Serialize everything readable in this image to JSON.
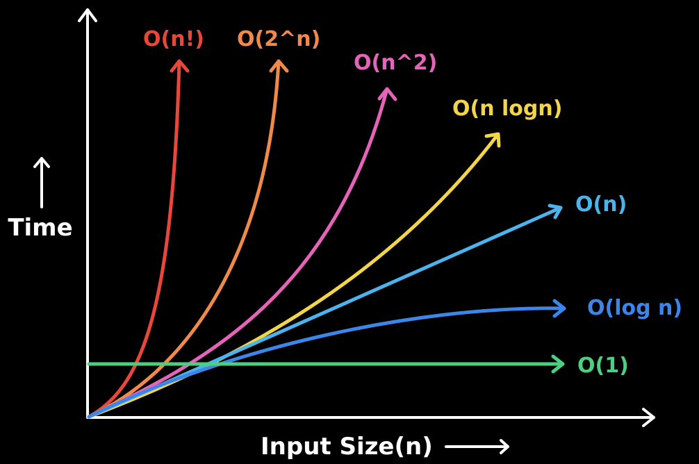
{
  "chart_data": {
    "type": "line",
    "xlabel": "Input Size(n)",
    "ylabel": "Time",
    "series": [
      {
        "name": "O(n!)",
        "color": "#e8473b"
      },
      {
        "name": "O(2^n)",
        "color": "#f08a4b"
      },
      {
        "name": "O(n^2)",
        "color": "#e563b8"
      },
      {
        "name": "O(n logn)",
        "color": "#f3d548"
      },
      {
        "name": "O(n)",
        "color": "#4cb3ec"
      },
      {
        "name": "O(log n)",
        "color": "#3b86e8"
      },
      {
        "name": "O(1)",
        "color": "#4ccf7e"
      }
    ]
  },
  "colors": {
    "background": "#000000",
    "axis": "#ffffff"
  }
}
